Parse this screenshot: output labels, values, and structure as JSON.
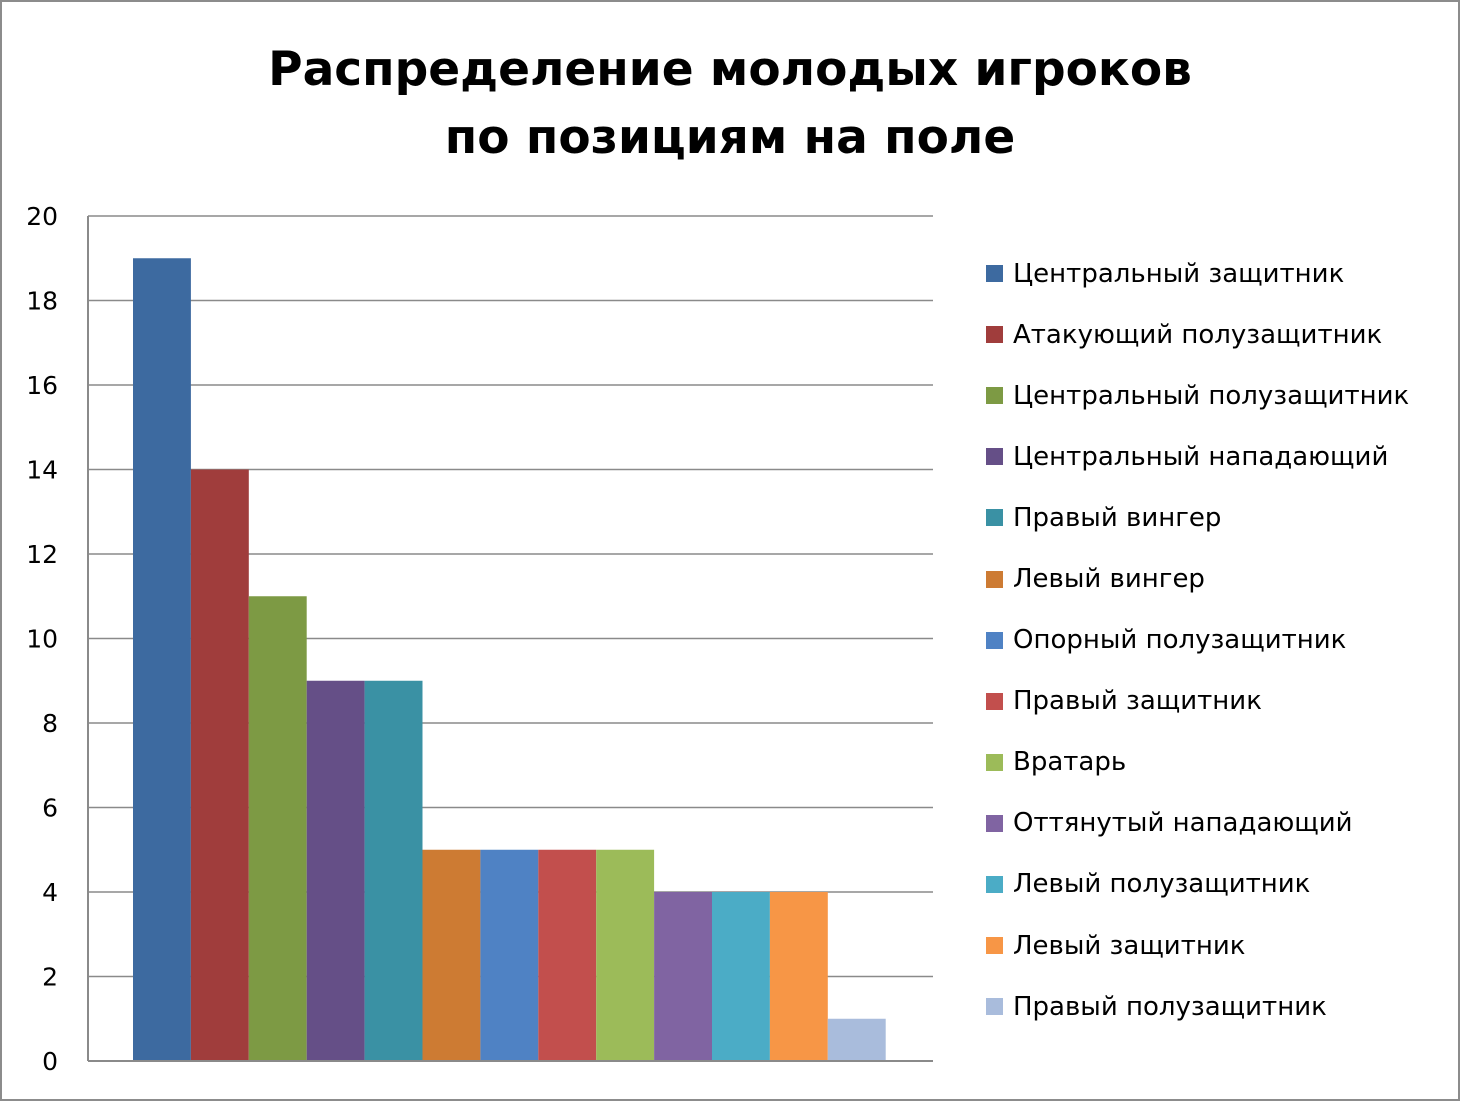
{
  "chart_data": {
    "type": "bar",
    "title": [
      "Распределение молодых игроков",
      "по позициям на поле"
    ],
    "xlabel": "",
    "ylabel": "",
    "ylim": [
      0,
      20
    ],
    "yticks": [
      "0",
      "2",
      "4",
      "6",
      "8",
      "10",
      "12",
      "14",
      "16",
      "18",
      "20"
    ],
    "grid": true,
    "legend_position": "right",
    "series": [
      {
        "name": "Центральный защитник",
        "value": 19,
        "color": "#3d6aa0"
      },
      {
        "name": "Атакующий полузащитник",
        "value": 14,
        "color": "#a03d3c"
      },
      {
        "name": "Центральный полузащитник",
        "value": 11,
        "color": "#7d9a44"
      },
      {
        "name": "Центральный нападающий",
        "value": 9,
        "color": "#654f87"
      },
      {
        "name": "Правый вингер",
        "value": 9,
        "color": "#3a91a4"
      },
      {
        "name": "Левый вингер",
        "value": 5,
        "color": "#cd7b33"
      },
      {
        "name": "Опорный полузащитник",
        "value": 5,
        "color": "#4f82c4"
      },
      {
        "name": "Правый защитник",
        "value": 5,
        "color": "#c24f4d"
      },
      {
        "name": "Вратарь",
        "value": 5,
        "color": "#9cbb59"
      },
      {
        "name": "Оттянутый нападающий",
        "value": 4,
        "color": "#8064a2"
      },
      {
        "name": "Левый полузащитник",
        "value": 4,
        "color": "#4bacc6"
      },
      {
        "name": "Левый защитник",
        "value": 4,
        "color": "#f79646"
      },
      {
        "name": "Правый полузащитник",
        "value": 1,
        "color": "#a9bcdc"
      }
    ]
  }
}
